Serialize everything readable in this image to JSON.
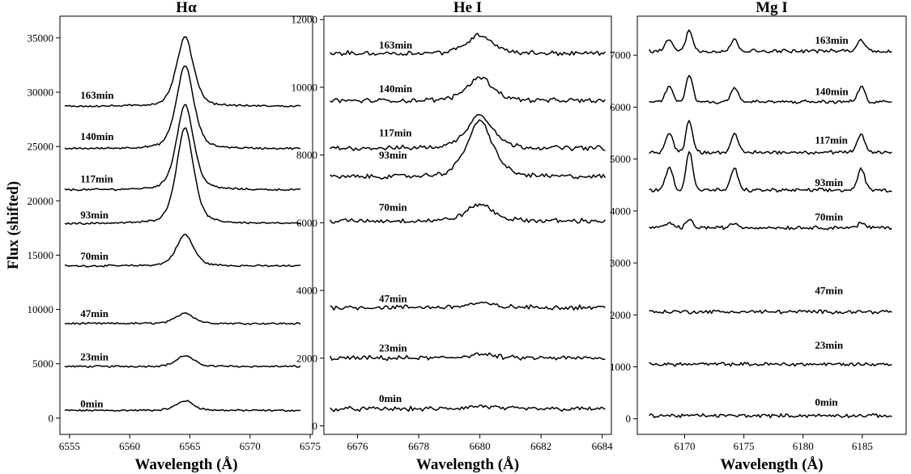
{
  "chart_data": [
    {
      "type": "line",
      "title": "Hα",
      "xlabel": "Wavelength (Å)",
      "ylabel": "Flux (shifted)",
      "xlim": [
        6554.2,
        6575.2
      ],
      "ylim": [
        -1500,
        37000
      ],
      "xticks": [
        6555,
        6560,
        6565,
        6570,
        6575
      ],
      "yticks": [
        0,
        5000,
        10000,
        15000,
        20000,
        25000,
        30000,
        35000
      ],
      "line": {
        "center": 6564.6,
        "width": 0.75,
        "start": 6554.6,
        "end": 6574.2,
        "noise": 70
      },
      "series": [
        {
          "name": "0min",
          "baseline": 700,
          "peak": 900,
          "label_x": 6555.9,
          "label_y": 1000
        },
        {
          "name": "23min",
          "baseline": 4750,
          "peak": 1000,
          "label_x": 6555.9,
          "label_y": 5300
        },
        {
          "name": "47min",
          "baseline": 8700,
          "peak": 1000,
          "label_x": 6555.9,
          "label_y": 9300
        },
        {
          "name": "70min",
          "baseline": 14000,
          "peak": 2900,
          "label_x": 6555.9,
          "label_y": 14600
        },
        {
          "name": "93min",
          "baseline": 17900,
          "peak": 8900,
          "label_x": 6555.9,
          "label_y": 18400
        },
        {
          "name": "117min",
          "baseline": 21000,
          "peak": 7900,
          "label_x": 6555.9,
          "label_y": 21700
        },
        {
          "name": "140min",
          "baseline": 24800,
          "peak": 7700,
          "label_x": 6555.9,
          "label_y": 25600
        },
        {
          "name": "163min",
          "baseline": 28700,
          "peak": 6400,
          "label_x": 6555.9,
          "label_y": 29400
        }
      ]
    },
    {
      "type": "line",
      "title": "He I",
      "xlabel": "Wavelength (Å)",
      "ylabel": "",
      "xlim": [
        6674.9,
        6684.3
      ],
      "ylim": [
        -250,
        12100
      ],
      "xticks": [
        6676,
        6678,
        6680,
        6682,
        6684
      ],
      "yticks": [
        0,
        2000,
        4000,
        6000,
        8000,
        10000,
        12000
      ],
      "line": {
        "center": 6680.0,
        "width": 0.45,
        "start": 6675.1,
        "end": 6684.1,
        "noise": 55
      },
      "series": [
        {
          "name": "0min",
          "baseline": 500,
          "peak": 80,
          "label_x": 6676.7,
          "label_y": 700
        },
        {
          "name": "23min",
          "baseline": 2000,
          "peak": 120,
          "label_x": 6676.7,
          "label_y": 2200
        },
        {
          "name": "47min",
          "baseline": 3500,
          "peak": 120,
          "label_x": 6676.7,
          "label_y": 3650
        },
        {
          "name": "70min",
          "baseline": 6050,
          "peak": 500,
          "label_x": 6676.7,
          "label_y": 6350
        },
        {
          "name": "93min",
          "baseline": 7350,
          "peak": 1650,
          "label_x": 6676.7,
          "label_y": 7900
        },
        {
          "name": "117min",
          "baseline": 8200,
          "peak": 1000,
          "label_x": 6676.7,
          "label_y": 8550
        },
        {
          "name": "140min",
          "baseline": 9600,
          "peak": 700,
          "label_x": 6676.7,
          "label_y": 9850
        },
        {
          "name": "163min",
          "baseline": 11000,
          "peak": 550,
          "label_x": 6676.7,
          "label_y": 11150
        }
      ]
    },
    {
      "type": "line",
      "title": "Mg I",
      "xlabel": "Wavelength (Å)",
      "ylabel": "",
      "xlim": [
        6166.0,
        6188.7
      ],
      "ylim": [
        -300,
        7750
      ],
      "xticks": [
        6170,
        6175,
        6180,
        6185
      ],
      "yticks": [
        0,
        1000,
        2000,
        3000,
        4000,
        5000,
        6000,
        7000
      ],
      "lines": [
        {
          "center": 6168.7,
          "width": 0.3,
          "strength": 0.6
        },
        {
          "center": 6170.4,
          "width": 0.28,
          "strength": 1.0
        },
        {
          "center": 6174.2,
          "width": 0.3,
          "strength": 0.55
        },
        {
          "center": 6184.9,
          "width": 0.3,
          "strength": 0.55
        }
      ],
      "range": {
        "start": 6167.0,
        "end": 6187.5,
        "noise": 28
      },
      "series": [
        {
          "name": "0min",
          "baseline": 60,
          "peak": 0,
          "label_x": 6181.0,
          "label_y": 250
        },
        {
          "name": "23min",
          "baseline": 1050,
          "peak": 0,
          "label_x": 6181.0,
          "label_y": 1350
        },
        {
          "name": "47min",
          "baseline": 2060,
          "peak": 0,
          "label_x": 6181.0,
          "label_y": 2400
        },
        {
          "name": "70min",
          "baseline": 3680,
          "peak": 150,
          "label_x": 6181.0,
          "label_y": 3820
        },
        {
          "name": "93min",
          "baseline": 4400,
          "peak": 750,
          "label_x": 6181.0,
          "label_y": 4480
        },
        {
          "name": "117min",
          "baseline": 5130,
          "peak": 620,
          "label_x": 6181.0,
          "label_y": 5300
        },
        {
          "name": "140min",
          "baseline": 6100,
          "peak": 520,
          "label_x": 6181.0,
          "label_y": 6230
        },
        {
          "name": "163min",
          "baseline": 7080,
          "peak": 400,
          "label_x": 6181.0,
          "label_y": 7220
        }
      ]
    }
  ]
}
